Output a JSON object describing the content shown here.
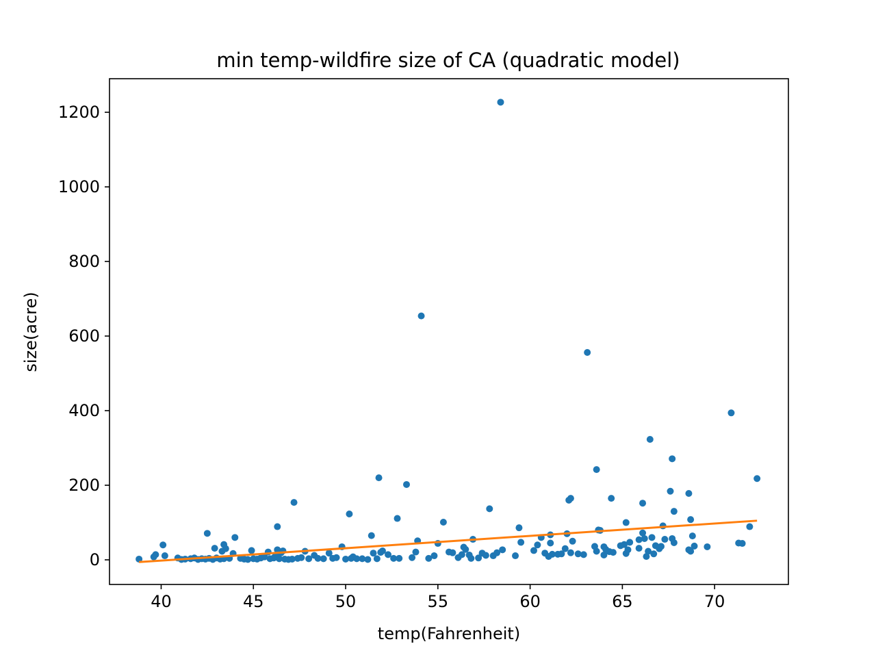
{
  "chart_data": {
    "type": "scatter",
    "title": "min temp-wildfire size of CA (quadratic model)",
    "xlabel": "temp(Fahrenheit)",
    "ylabel": "size(acre)",
    "xlim": [
      37.2,
      74.0
    ],
    "ylim": [
      -66,
      1290
    ],
    "xticks": [
      40,
      45,
      50,
      55,
      60,
      65,
      70
    ],
    "yticks": [
      0,
      200,
      400,
      600,
      800,
      1000,
      1200
    ],
    "grid": false,
    "legend": "none",
    "colors": {
      "points": "#1f77b4",
      "fit": "#ff7f0e"
    },
    "fit_line": {
      "x": [
        38.8,
        72.3
      ],
      "y": [
        -6,
        105
      ]
    },
    "series": [
      {
        "values": [
          [
            38.8,
            2
          ],
          [
            39.6,
            8
          ],
          [
            39.7,
            14
          ],
          [
            40.1,
            40
          ],
          [
            40.2,
            11
          ],
          [
            40.9,
            5
          ],
          [
            41.1,
            1
          ],
          [
            41.3,
            2
          ],
          [
            41.6,
            3
          ],
          [
            41.8,
            5
          ],
          [
            42.0,
            1
          ],
          [
            42.2,
            3
          ],
          [
            42.4,
            2
          ],
          [
            42.6,
            4
          ],
          [
            42.8,
            1
          ],
          [
            43.0,
            5
          ],
          [
            43.2,
            2
          ],
          [
            43.4,
            3
          ],
          [
            42.5,
            71
          ],
          [
            42.9,
            31
          ],
          [
            43.3,
            23
          ],
          [
            43.4,
            41
          ],
          [
            43.5,
            30
          ],
          [
            43.7,
            4
          ],
          [
            43.9,
            17
          ],
          [
            44.0,
            60
          ],
          [
            44.3,
            4
          ],
          [
            44.5,
            2
          ],
          [
            44.7,
            1
          ],
          [
            44.9,
            25
          ],
          [
            45.0,
            3
          ],
          [
            45.2,
            2
          ],
          [
            45.4,
            5
          ],
          [
            45.6,
            8
          ],
          [
            45.8,
            21
          ],
          [
            45.9,
            3
          ],
          [
            46.1,
            5
          ],
          [
            46.2,
            11
          ],
          [
            46.3,
            27
          ],
          [
            46.3,
            89
          ],
          [
            46.4,
            3
          ],
          [
            46.5,
            19
          ],
          [
            46.6,
            24
          ],
          [
            46.7,
            2
          ],
          [
            46.9,
            1
          ],
          [
            47.1,
            2
          ],
          [
            47.2,
            154
          ],
          [
            47.4,
            4
          ],
          [
            47.6,
            6
          ],
          [
            47.8,
            23
          ],
          [
            48.0,
            3
          ],
          [
            48.3,
            12
          ],
          [
            48.5,
            4
          ],
          [
            48.8,
            3
          ],
          [
            49.1,
            18
          ],
          [
            49.3,
            4
          ],
          [
            49.5,
            6
          ],
          [
            49.8,
            35
          ],
          [
            50.0,
            2
          ],
          [
            50.2,
            123
          ],
          [
            50.3,
            4
          ],
          [
            50.4,
            8
          ],
          [
            50.6,
            3
          ],
          [
            50.9,
            3
          ],
          [
            51.2,
            1
          ],
          [
            51.4,
            65
          ],
          [
            51.5,
            18
          ],
          [
            51.7,
            3
          ],
          [
            51.8,
            220
          ],
          [
            51.9,
            20
          ],
          [
            52.0,
            24
          ],
          [
            52.3,
            14
          ],
          [
            52.6,
            4
          ],
          [
            52.8,
            111
          ],
          [
            52.9,
            4
          ],
          [
            53.3,
            202
          ],
          [
            53.6,
            6
          ],
          [
            53.8,
            21
          ],
          [
            53.9,
            51
          ],
          [
            54.1,
            654
          ],
          [
            54.5,
            4
          ],
          [
            54.8,
            11
          ],
          [
            55.0,
            44
          ],
          [
            55.3,
            101
          ],
          [
            55.6,
            21
          ],
          [
            55.8,
            19
          ],
          [
            56.1,
            6
          ],
          [
            56.3,
            14
          ],
          [
            56.4,
            34
          ],
          [
            56.5,
            28
          ],
          [
            56.7,
            13
          ],
          [
            56.8,
            4
          ],
          [
            56.9,
            55
          ],
          [
            57.2,
            5
          ],
          [
            57.4,
            18
          ],
          [
            57.6,
            12
          ],
          [
            57.8,
            137
          ],
          [
            58.0,
            11
          ],
          [
            58.2,
            19
          ],
          [
            58.4,
            1227
          ],
          [
            58.5,
            27
          ],
          [
            59.2,
            11
          ],
          [
            59.4,
            86
          ],
          [
            59.5,
            47
          ],
          [
            60.2,
            25
          ],
          [
            60.4,
            40
          ],
          [
            60.6,
            60
          ],
          [
            60.8,
            18
          ],
          [
            61.0,
            9
          ],
          [
            61.1,
            45
          ],
          [
            61.1,
            67
          ],
          [
            61.2,
            15
          ],
          [
            61.5,
            15
          ],
          [
            61.7,
            16
          ],
          [
            61.9,
            30
          ],
          [
            62.0,
            70
          ],
          [
            62.1,
            160
          ],
          [
            62.2,
            165
          ],
          [
            62.2,
            19
          ],
          [
            62.3,
            50
          ],
          [
            62.6,
            16
          ],
          [
            62.9,
            14
          ],
          [
            63.1,
            556
          ],
          [
            63.5,
            36
          ],
          [
            63.6,
            23
          ],
          [
            63.6,
            242
          ],
          [
            63.7,
            80
          ],
          [
            63.8,
            79
          ],
          [
            64.0,
            13
          ],
          [
            64.0,
            35
          ],
          [
            64.1,
            28
          ],
          [
            64.3,
            22
          ],
          [
            64.4,
            165
          ],
          [
            64.5,
            20
          ],
          [
            64.9,
            38
          ],
          [
            65.1,
            41
          ],
          [
            65.2,
            100
          ],
          [
            65.2,
            17
          ],
          [
            65.3,
            27
          ],
          [
            65.4,
            47
          ],
          [
            65.9,
            54
          ],
          [
            65.9,
            31
          ],
          [
            66.1,
            152
          ],
          [
            66.1,
            72
          ],
          [
            66.2,
            57
          ],
          [
            66.3,
            9
          ],
          [
            66.4,
            23
          ],
          [
            66.5,
            323
          ],
          [
            66.6,
            60
          ],
          [
            66.7,
            16
          ],
          [
            66.8,
            38
          ],
          [
            67.0,
            30
          ],
          [
            67.1,
            36
          ],
          [
            67.2,
            91
          ],
          [
            67.3,
            55
          ],
          [
            67.6,
            184
          ],
          [
            67.7,
            271
          ],
          [
            67.8,
            130
          ],
          [
            67.7,
            57
          ],
          [
            67.8,
            46
          ],
          [
            68.6,
            178
          ],
          [
            68.6,
            27
          ],
          [
            68.7,
            23
          ],
          [
            68.7,
            108
          ],
          [
            68.8,
            64
          ],
          [
            68.9,
            37
          ],
          [
            69.6,
            35
          ],
          [
            70.9,
            394
          ],
          [
            71.3,
            45
          ],
          [
            71.5,
            44
          ],
          [
            71.9,
            89
          ],
          [
            72.3,
            218
          ]
        ]
      }
    ]
  }
}
